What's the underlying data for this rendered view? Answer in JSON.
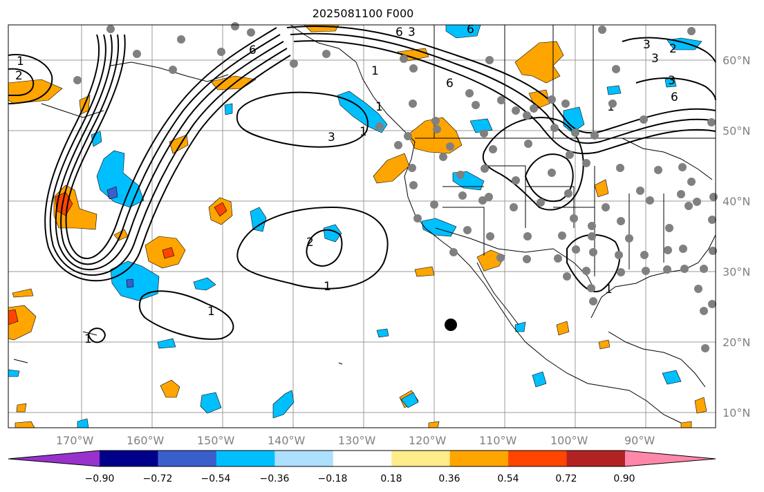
{
  "title": "2025081100 F000",
  "axes": {
    "lon_labels": [
      "170°W",
      "160°W",
      "150°W",
      "140°W",
      "130°W",
      "120°W",
      "110°W",
      "100°W",
      "90°W"
    ],
    "lat_labels": [
      "60°N",
      "50°N",
      "40°N",
      "30°N",
      "20°N",
      "10°N"
    ]
  },
  "colorbar": {
    "colors": [
      "#9932CC",
      "#00008B",
      "#3A5FCD",
      "#00BFFF",
      "#ADDFFF",
      "#FFFFFF",
      "#FFEC8B",
      "#FFA500",
      "#FF4500",
      "#B22222",
      "#FF88AA"
    ],
    "tick_labels": [
      "−0.90",
      "−0.72",
      "−0.54",
      "−0.36",
      "−0.18",
      "0.18",
      "0.36",
      "0.54",
      "0.72",
      "0.90"
    ]
  },
  "contour_labels": [
    "1",
    "2",
    "3",
    "6"
  ],
  "colors": {
    "ocean_land_background": "#ffffff",
    "grid": "#999999",
    "station_dots": "#808080",
    "marker": "#000000"
  }
}
